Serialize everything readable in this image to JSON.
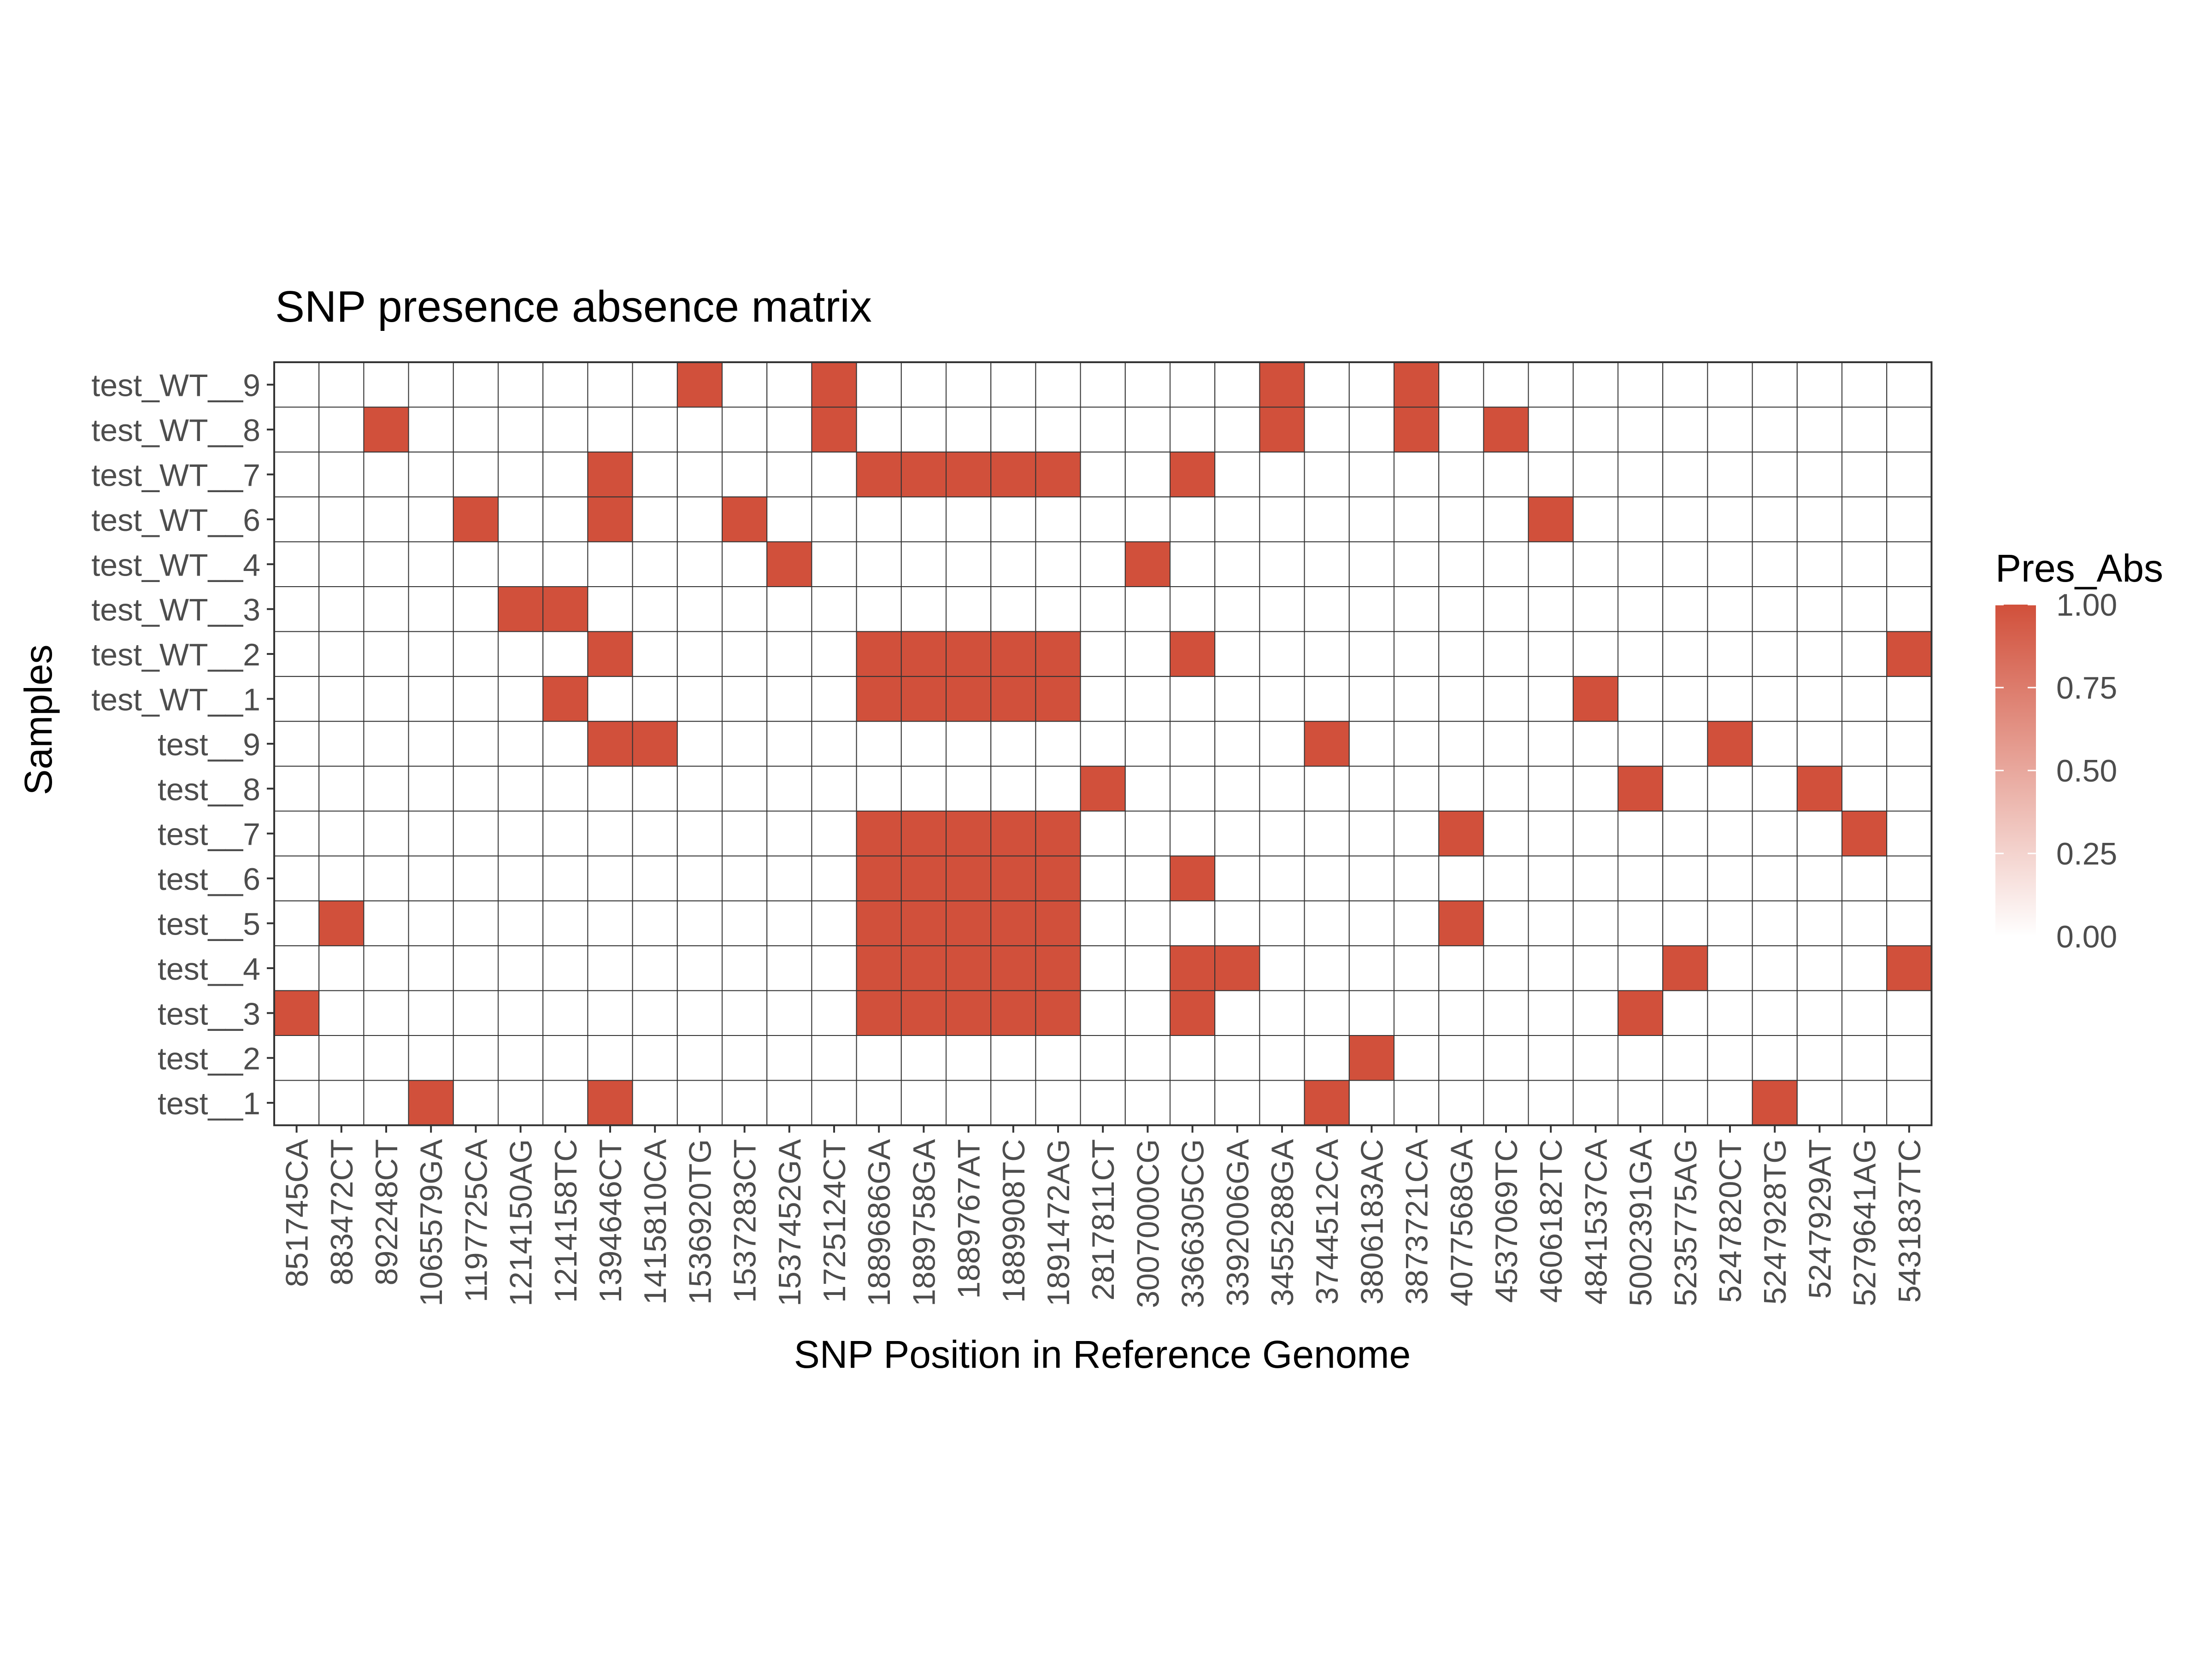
{
  "chart_data": {
    "type": "heatmap",
    "title": "SNP presence absence matrix",
    "xlabel": "SNP Position in Reference Genome",
    "ylabel": "Samples",
    "x": [
      "851745CA",
      "883472CT",
      "892248CT",
      "1065579GA",
      "1197725CA",
      "1214150AG",
      "1214158TC",
      "1394646CT",
      "1415810CA",
      "1536920TG",
      "1537283CT",
      "1537452GA",
      "1725124CT",
      "1889686GA",
      "1889758GA",
      "1889767AT",
      "1889908TC",
      "1891472AG",
      "2817811CT",
      "3007000CG",
      "3366305CG",
      "3392006GA",
      "3455288GA",
      "3744512CA",
      "3806183AC",
      "3873721CA",
      "4077568GA",
      "4537069TC",
      "4606182TC",
      "4841537CA",
      "5002391GA",
      "5235775AG",
      "5247820CT",
      "5247928TG",
      "5247929AT",
      "5279641AG",
      "5431837TC"
    ],
    "y": [
      "test__1",
      "test__2",
      "test__3",
      "test__4",
      "test__5",
      "test__6",
      "test__7",
      "test__8",
      "test__9",
      "test_WT__1",
      "test_WT__2",
      "test_WT__3",
      "test_WT__4",
      "test_WT__6",
      "test_WT__7",
      "test_WT__8",
      "test_WT__9"
    ],
    "present": {
      "test__1": [
        "1065579GA",
        "1394646CT",
        "3744512CA",
        "5247928TG"
      ],
      "test__2": [
        "3806183AC"
      ],
      "test__3": [
        "851745CA",
        "1889686GA",
        "1889758GA",
        "1889767AT",
        "1889908TC",
        "1891472AG",
        "3366305CG",
        "5002391GA"
      ],
      "test__4": [
        "1889686GA",
        "1889758GA",
        "1889767AT",
        "1889908TC",
        "1891472AG",
        "3366305CG",
        "3392006GA",
        "5235775AG",
        "5431837TC"
      ],
      "test__5": [
        "883472CT",
        "1889686GA",
        "1889758GA",
        "1889767AT",
        "1889908TC",
        "1891472AG",
        "4077568GA"
      ],
      "test__6": [
        "1889686GA",
        "1889758GA",
        "1889767AT",
        "1889908TC",
        "1891472AG",
        "3366305CG"
      ],
      "test__7": [
        "1889686GA",
        "1889758GA",
        "1889767AT",
        "1889908TC",
        "1891472AG",
        "4077568GA",
        "5279641AG"
      ],
      "test__8": [
        "2817811CT",
        "5002391GA",
        "5247929AT"
      ],
      "test__9": [
        "1394646CT",
        "1415810CA",
        "3744512CA",
        "5247820CT"
      ],
      "test_WT__1": [
        "1214158TC",
        "1889686GA",
        "1889758GA",
        "1889767AT",
        "1889908TC",
        "1891472AG",
        "4841537CA"
      ],
      "test_WT__2": [
        "1394646CT",
        "1889686GA",
        "1889758GA",
        "1889767AT",
        "1889908TC",
        "1891472AG",
        "3366305CG",
        "5431837TC"
      ],
      "test_WT__3": [
        "1214150AG",
        "1214158TC"
      ],
      "test_WT__4": [
        "1537452GA",
        "3007000CG"
      ],
      "test_WT__6": [
        "1197725CA",
        "1394646CT",
        "1537283CT",
        "4606182TC"
      ],
      "test_WT__7": [
        "1394646CT",
        "1889686GA",
        "1889758GA",
        "1889767AT",
        "1889908TC",
        "1891472AG",
        "3366305CG"
      ],
      "test_WT__8": [
        "892248CT",
        "1725124CT",
        "3455288GA",
        "3873721CA",
        "4537069TC"
      ],
      "test_WT__9": [
        "1536920TG",
        "1725124CT",
        "3455288GA",
        "3873721CA"
      ]
    },
    "value_present": 1,
    "value_absent": 0,
    "legend": {
      "title": "Pres_Abs",
      "placement": "right",
      "ticks": [
        "0.00",
        "0.25",
        "0.50",
        "0.75",
        "1.00"
      ],
      "range": [
        0,
        1
      ],
      "low_color": "#ffffff",
      "high_color": "#d1503b"
    },
    "grid": true,
    "cell_border_color": "#333333"
  }
}
